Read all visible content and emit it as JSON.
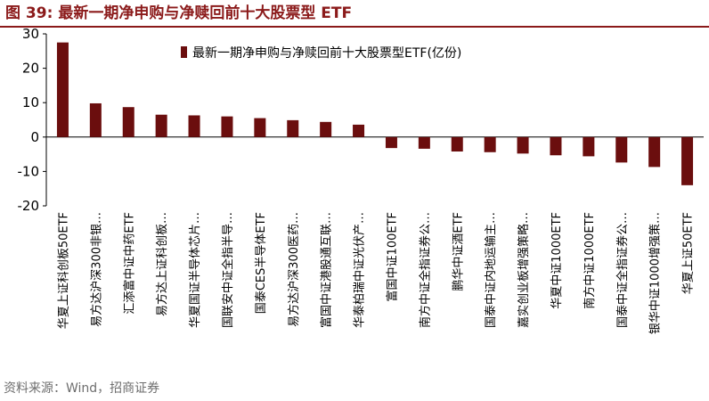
{
  "figure": {
    "label": "图 39:",
    "title": "最新一期净申购与净赎回前十大股票型 ETF"
  },
  "source": "资料来源：Wind，招商证券",
  "chart_data": {
    "type": "bar",
    "orientation": "vertical",
    "legend_position": "top-center",
    "grid": false,
    "bar_color": "#6B0E0E",
    "ylim": [
      -20,
      30
    ],
    "yticks": [
      30,
      20,
      10,
      0,
      -10,
      -20
    ],
    "xlabel": "",
    "ylabel": "",
    "series": [
      {
        "name": "最新一期净申购与净赎回前十大股票型ETF(亿份)",
        "values": [
          27.5,
          9.8,
          8.7,
          6.5,
          6.3,
          6.0,
          5.5,
          4.9,
          4.4,
          3.6,
          -3.2,
          -3.4,
          -4.2,
          -4.4,
          -4.8,
          -5.3,
          -5.6,
          -7.4,
          -8.7,
          -14.0
        ]
      }
    ],
    "categories": [
      "华夏上证科创板50ETF",
      "易方达沪深300非银…",
      "汇添富中证中药ETF",
      "易方达上证科创板…",
      "华夏国证半导体芯片…",
      "国联安中证全指半导…",
      "国泰CES半导体ETF",
      "易方达沪深300医药…",
      "富国中证港股通互联…",
      "华泰柏瑞中证光伏产…",
      "富国中证100ETF",
      "南方中证全指证券公…",
      "鹏华中证酒ETF",
      "国泰中证内地运输主…",
      "嘉实创业板增强策略…",
      "华夏中证1000ETF",
      "南方中证1000ETF",
      "国泰中证全指证券公…",
      "银华中证1000增强策…",
      "华夏上证50ETF"
    ]
  }
}
